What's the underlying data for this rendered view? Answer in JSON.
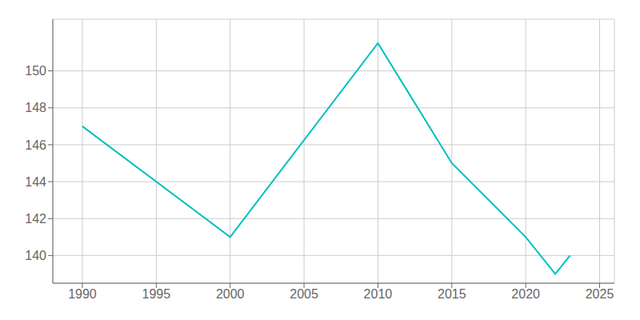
{
  "chart_data": {
    "type": "line",
    "x": [
      1990,
      2000,
      2010,
      2015,
      2020,
      2022,
      2023
    ],
    "values": [
      147,
      141,
      151.5,
      145,
      141,
      139,
      140
    ],
    "color": "#00BFBF",
    "xlim": [
      1988,
      2026
    ],
    "xticks": [
      1990,
      1995,
      2000,
      2005,
      2010,
      2015,
      2020,
      2025
    ],
    "ylim": [
      138.5,
      152.8
    ],
    "yticks": [
      140,
      142,
      144,
      146,
      148,
      150
    ],
    "grid": true
  }
}
